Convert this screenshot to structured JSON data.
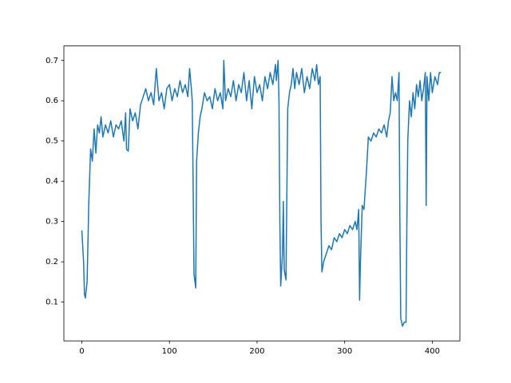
{
  "chart_data": {
    "type": "line",
    "x": [
      0,
      2,
      3,
      4,
      6,
      8,
      10,
      12,
      14,
      16,
      18,
      20,
      22,
      24,
      27,
      30,
      33,
      36,
      39,
      42,
      45,
      48,
      50,
      51,
      53,
      55,
      58,
      61,
      64,
      67,
      70,
      73,
      76,
      79,
      82,
      85,
      88,
      91,
      94,
      97,
      100,
      103,
      106,
      109,
      112,
      115,
      118,
      121,
      123,
      125,
      126,
      127,
      128,
      130,
      131,
      133,
      135,
      137,
      140,
      143,
      146,
      149,
      152,
      155,
      158,
      161,
      162,
      164,
      167,
      170,
      173,
      176,
      179,
      182,
      185,
      188,
      191,
      194,
      197,
      200,
      203,
      206,
      209,
      212,
      215,
      218,
      221,
      222,
      224,
      225,
      226,
      227,
      229,
      230,
      231,
      233,
      235,
      237,
      239,
      241,
      243,
      245,
      248,
      251,
      254,
      257,
      260,
      263,
      266,
      268,
      270,
      272,
      273,
      274,
      276,
      279,
      282,
      285,
      288,
      291,
      294,
      297,
      300,
      303,
      306,
      309,
      312,
      314,
      316,
      317,
      318,
      320,
      322,
      325,
      327,
      330,
      333,
      336,
      339,
      342,
      345,
      348,
      350,
      352,
      354,
      356,
      358,
      360,
      362,
      363,
      364,
      366,
      368,
      370,
      371,
      372,
      374,
      376,
      378,
      380,
      382,
      384,
      386,
      388,
      390,
      392,
      393,
      394,
      396,
      398,
      400,
      403,
      406,
      408,
      410
    ],
    "series": [
      {
        "color": "#1f77b4",
        "values": [
          0.278,
          0.2,
          0.12,
          0.11,
          0.15,
          0.35,
          0.48,
          0.45,
          0.53,
          0.47,
          0.54,
          0.52,
          0.56,
          0.51,
          0.54,
          0.52,
          0.55,
          0.51,
          0.54,
          0.53,
          0.55,
          0.5,
          0.57,
          0.48,
          0.475,
          0.58,
          0.55,
          0.57,
          0.53,
          0.59,
          0.61,
          0.63,
          0.6,
          0.62,
          0.59,
          0.68,
          0.6,
          0.62,
          0.58,
          0.63,
          0.64,
          0.6,
          0.63,
          0.61,
          0.65,
          0.62,
          0.64,
          0.61,
          0.68,
          0.63,
          0.6,
          0.4,
          0.17,
          0.135,
          0.45,
          0.52,
          0.56,
          0.58,
          0.62,
          0.6,
          0.61,
          0.58,
          0.63,
          0.6,
          0.62,
          0.58,
          0.7,
          0.6,
          0.63,
          0.61,
          0.65,
          0.6,
          0.64,
          0.62,
          0.67,
          0.6,
          0.65,
          0.58,
          0.66,
          0.62,
          0.64,
          0.6,
          0.66,
          0.63,
          0.67,
          0.64,
          0.69,
          0.65,
          0.7,
          0.6,
          0.3,
          0.14,
          0.22,
          0.35,
          0.18,
          0.155,
          0.58,
          0.62,
          0.64,
          0.68,
          0.63,
          0.67,
          0.64,
          0.68,
          0.62,
          0.66,
          0.63,
          0.68,
          0.65,
          0.69,
          0.64,
          0.66,
          0.3,
          0.175,
          0.2,
          0.22,
          0.24,
          0.23,
          0.26,
          0.25,
          0.27,
          0.26,
          0.28,
          0.27,
          0.29,
          0.28,
          0.3,
          0.28,
          0.33,
          0.105,
          0.2,
          0.34,
          0.33,
          0.43,
          0.51,
          0.5,
          0.52,
          0.51,
          0.53,
          0.52,
          0.54,
          0.51,
          0.55,
          0.57,
          0.66,
          0.6,
          0.62,
          0.6,
          0.67,
          0.3,
          0.06,
          0.04,
          0.05,
          0.05,
          0.3,
          0.5,
          0.6,
          0.56,
          0.62,
          0.58,
          0.64,
          0.61,
          0.65,
          0.6,
          0.63,
          0.67,
          0.34,
          0.66,
          0.6,
          0.67,
          0.62,
          0.66,
          0.64,
          0.67,
          0.67
        ]
      }
    ],
    "xlim": [
      -20.5,
      431.5
    ],
    "ylim": [
      0.0037,
      0.736
    ],
    "xticks": [
      0,
      100,
      200,
      300,
      400
    ],
    "yticks": [
      0.1,
      0.2,
      0.3,
      0.4,
      0.5,
      0.6,
      0.7
    ]
  }
}
